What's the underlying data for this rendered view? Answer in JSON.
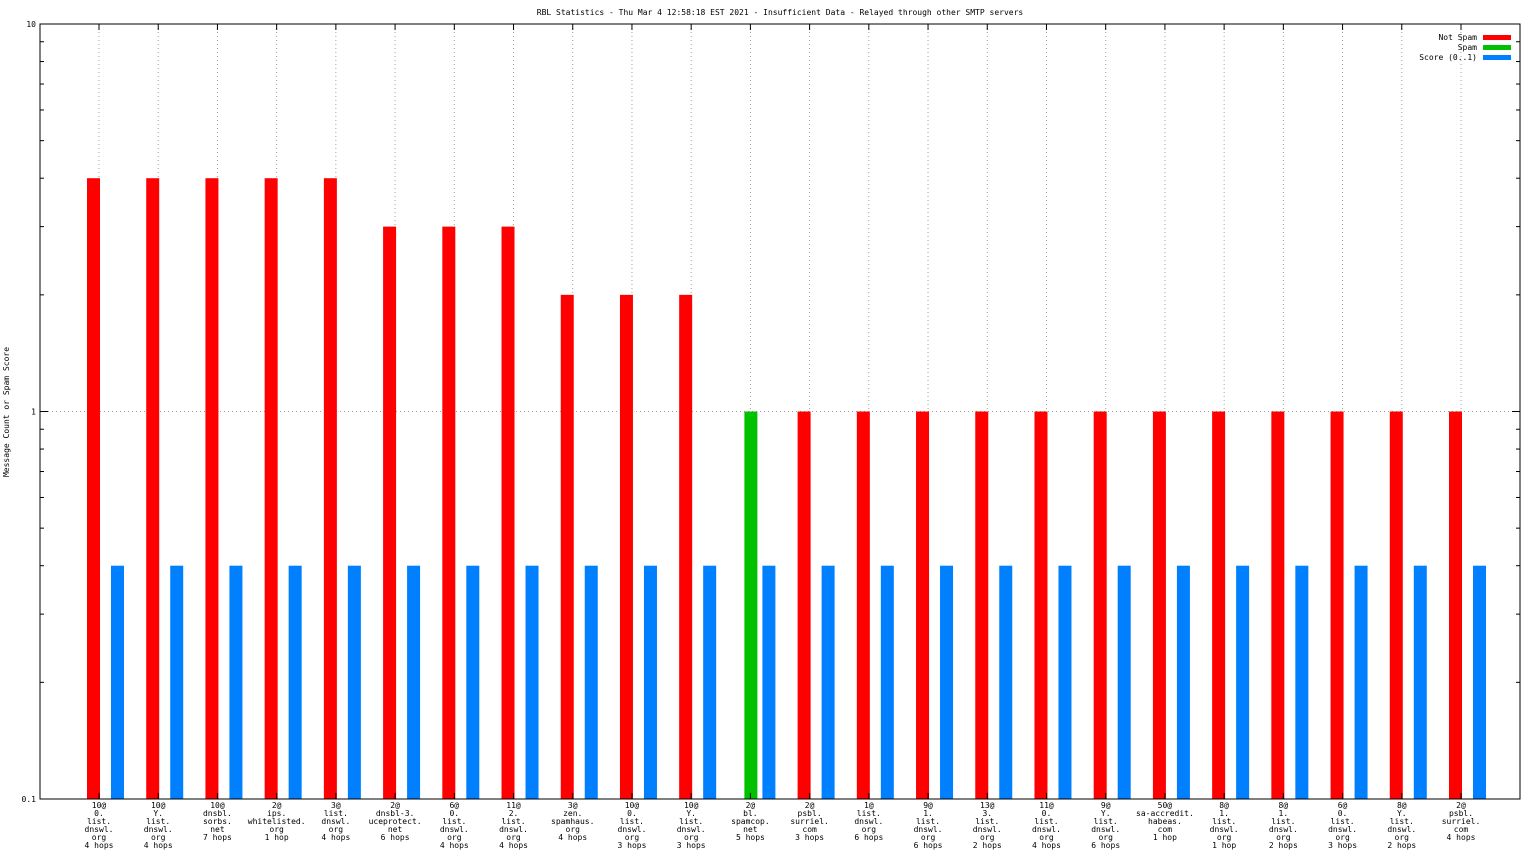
{
  "chart_data": {
    "type": "bar",
    "title": "RBL Statistics - Thu Mar  4 12:58:18 EST 2021 - Insufficient Data - Relayed through other SMTP servers",
    "ylabel": "Message Count or Spam Score",
    "yscale": "log",
    "ylim": [
      0.1,
      10
    ],
    "yticks": [
      "0.1",
      "1",
      "10"
    ],
    "grid": true,
    "legend_position": "top-right",
    "categories": [
      [
        "10@",
        "0.",
        "list.",
        "dnswl.",
        "org",
        "4 hops"
      ],
      [
        "10@",
        "Y.",
        "list.",
        "dnswl.",
        "org",
        "4 hops"
      ],
      [
        "10@",
        "dnsbl.",
        "sorbs.",
        "net",
        "7 hops"
      ],
      [
        "2@",
        "ips.",
        "whitelisted.",
        "org",
        "1 hop"
      ],
      [
        "3@",
        "list.",
        "dnswl.",
        "org",
        "4 hops"
      ],
      [
        "2@",
        "dnsbl-3.",
        "uceprotect.",
        "net",
        "6 hops"
      ],
      [
        "6@",
        "0.",
        "list.",
        "dnswl.",
        "org",
        "4 hops"
      ],
      [
        "11@",
        "2.",
        "list.",
        "dnswl.",
        "org",
        "4 hops"
      ],
      [
        "3@",
        "zen.",
        "spamhaus.",
        "org",
        "4 hops"
      ],
      [
        "10@",
        "0.",
        "list.",
        "dnswl.",
        "org",
        "3 hops"
      ],
      [
        "10@",
        "Y.",
        "list.",
        "dnswl.",
        "org",
        "3 hops"
      ],
      [
        "2@",
        "bl.",
        "spamcop.",
        "net",
        "5 hops"
      ],
      [
        "2@",
        "psbl.",
        "surriel.",
        "com",
        "3 hops"
      ],
      [
        "1@",
        "list.",
        "dnswl.",
        "org",
        "6 hops"
      ],
      [
        "9@",
        "1.",
        "list.",
        "dnswl.",
        "org",
        "6 hops"
      ],
      [
        "13@",
        "3.",
        "list.",
        "dnswl.",
        "org",
        "2 hops"
      ],
      [
        "11@",
        "0.",
        "list.",
        "dnswl.",
        "org",
        "4 hops"
      ],
      [
        "9@",
        "Y.",
        "list.",
        "dnswl.",
        "org",
        "6 hops"
      ],
      [
        "50@",
        "sa-accredit.",
        "habeas.",
        "com",
        "1 hop"
      ],
      [
        "8@",
        "1.",
        "list.",
        "dnswl.",
        "org",
        "1 hop"
      ],
      [
        "8@",
        "1.",
        "list.",
        "dnswl.",
        "org",
        "2 hops"
      ],
      [
        "6@",
        "0.",
        "list.",
        "dnswl.",
        "org",
        "3 hops"
      ],
      [
        "8@",
        "Y.",
        "list.",
        "dnswl.",
        "org",
        "2 hops"
      ],
      [
        "2@",
        "psbl.",
        "surriel.",
        "com",
        "4 hops"
      ]
    ],
    "series": [
      {
        "name": "Not Spam",
        "color": "#ff0000",
        "values": [
          4,
          4,
          4,
          4,
          4,
          3,
          3,
          3,
          2,
          2,
          2,
          0,
          1,
          1,
          1,
          1,
          1,
          1,
          1,
          1,
          1,
          1,
          1,
          1
        ]
      },
      {
        "name": "Spam",
        "color": "#00c000",
        "values": [
          0,
          0,
          0,
          0,
          0,
          0,
          0,
          0,
          0,
          0,
          0,
          1,
          0,
          0,
          0,
          0,
          0,
          0,
          0,
          0,
          0,
          0,
          0,
          0
        ]
      },
      {
        "name": "Score (0..1)",
        "color": "#0080ff",
        "values": [
          0.4,
          0.4,
          0.4,
          0.4,
          0.4,
          0.4,
          0.4,
          0.4,
          0.4,
          0.4,
          0.4,
          0.4,
          0.4,
          0.4,
          0.4,
          0.4,
          0.4,
          0.4,
          0.4,
          0.4,
          0.4,
          0.4,
          0.4,
          0.4
        ]
      }
    ]
  }
}
